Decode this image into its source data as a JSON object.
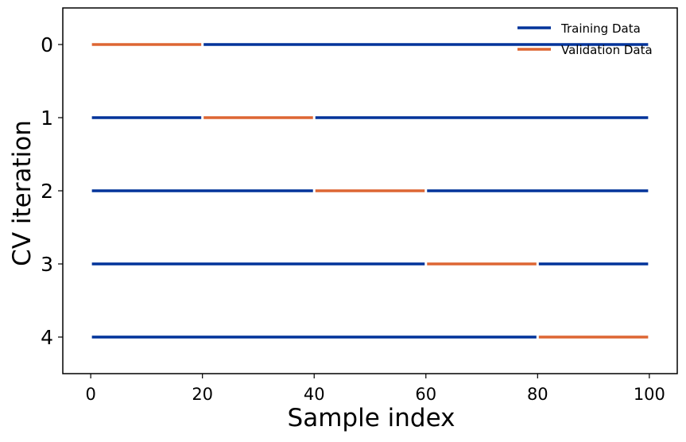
{
  "chart_data": {
    "type": "line",
    "xlabel": "Sample index",
    "ylabel": "CV iteration",
    "xlim": [
      -5,
      105
    ],
    "ylim": [
      -0.5,
      4.5
    ],
    "y_inverted": true,
    "xticks": [
      0,
      20,
      40,
      60,
      80,
      100
    ],
    "yticks": [
      0,
      1,
      2,
      3,
      4
    ],
    "grid": false,
    "legend_position": "top-right",
    "series": [
      {
        "name": "Training Data",
        "color": "#00339a"
      },
      {
        "name": "Validation Data",
        "color": "#dd6633"
      }
    ],
    "iterations": [
      {
        "iteration": 0,
        "validation": [
          0,
          20
        ],
        "training": [
          [
            20,
            100
          ]
        ]
      },
      {
        "iteration": 1,
        "validation": [
          20,
          40
        ],
        "training": [
          [
            0,
            20
          ],
          [
            40,
            100
          ]
        ]
      },
      {
        "iteration": 2,
        "validation": [
          40,
          60
        ],
        "training": [
          [
            0,
            40
          ],
          [
            60,
            100
          ]
        ]
      },
      {
        "iteration": 3,
        "validation": [
          60,
          80
        ],
        "training": [
          [
            0,
            60
          ],
          [
            80,
            100
          ]
        ]
      },
      {
        "iteration": 4,
        "validation": [
          80,
          100
        ],
        "training": [
          [
            0,
            80
          ]
        ]
      }
    ]
  }
}
